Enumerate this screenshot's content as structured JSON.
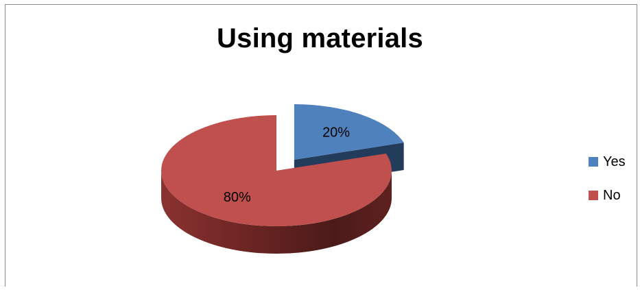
{
  "chart_data": {
    "type": "pie",
    "title": "Using materials",
    "categories": [
      "Yes",
      "No"
    ],
    "values": [
      20,
      80
    ],
    "data_labels": [
      "20%",
      "80%"
    ],
    "colors": [
      "#4f81bd",
      "#c0504d"
    ],
    "exploded": [
      true,
      false
    ],
    "legend_position": "right",
    "style": "3d"
  }
}
